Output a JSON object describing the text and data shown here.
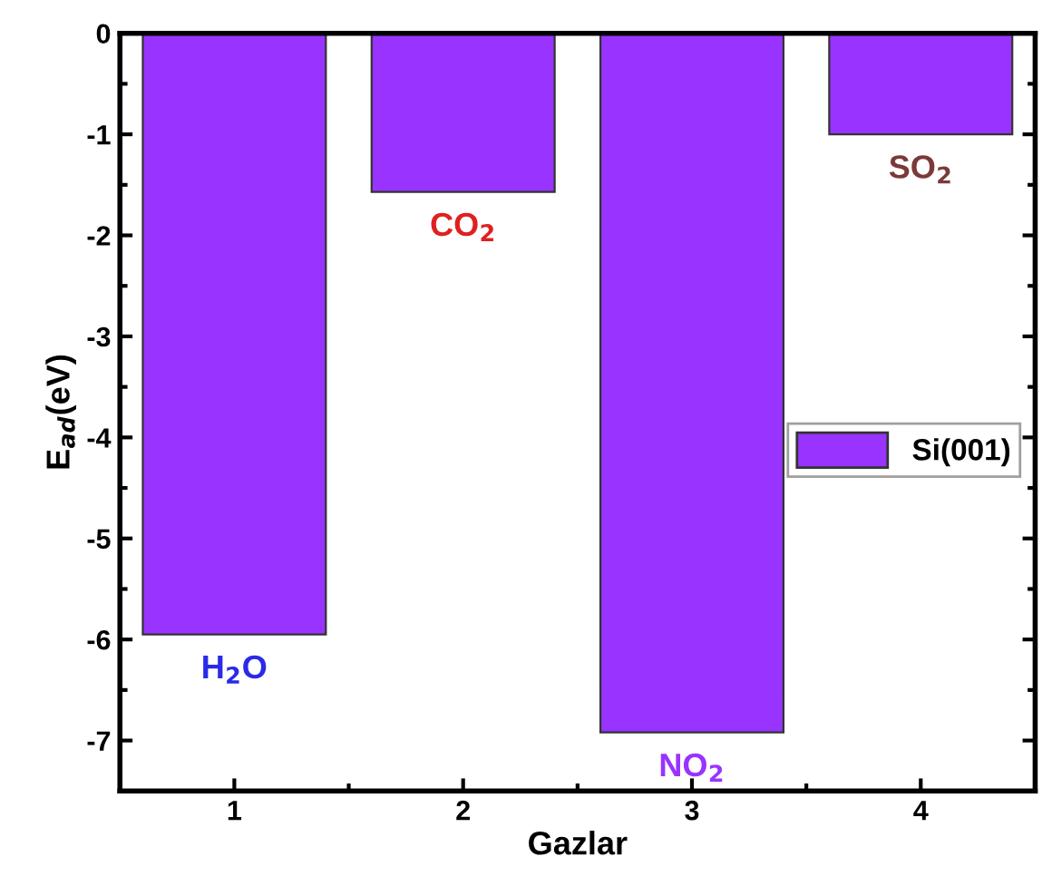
{
  "chart_data": {
    "type": "bar",
    "xlabel": "Gazlar",
    "ylabel": "E$_{ad}$(eV)",
    "x": [
      1,
      2,
      3,
      4
    ],
    "series": [
      {
        "name": "Si(001)",
        "color": "#9933ff",
        "values": [
          -5.95,
          -1.57,
          -6.92,
          -1.0
        ]
      }
    ],
    "xlim": [
      0.5,
      4.5
    ],
    "xticks": [
      1,
      2,
      3,
      4
    ],
    "ylim": [
      -7.5,
      0
    ],
    "yticks": [
      0,
      -1,
      -2,
      -3,
      -4,
      -5,
      -6,
      -7
    ],
    "legend": "right",
    "grid": false,
    "annotations": [
      "H$_{2}$O",
      "CO$_{2}$",
      "NO$_{2}$",
      "SO$_{2}$"
    ]
  }
}
